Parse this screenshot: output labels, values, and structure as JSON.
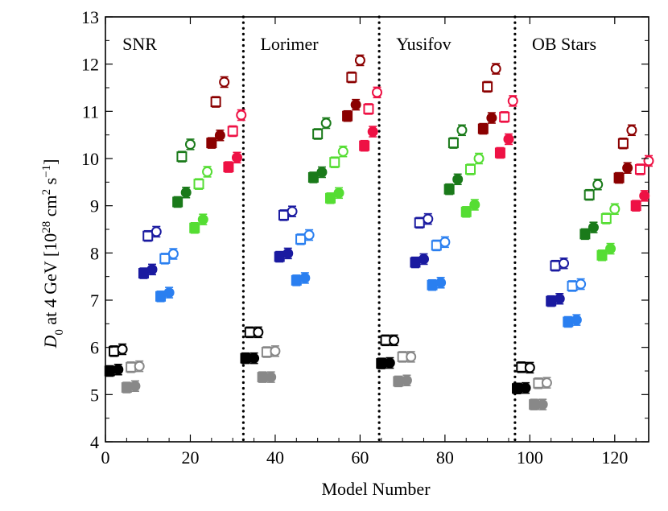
{
  "chart_data": {
    "type": "scatter",
    "xlabel": "Model Number",
    "ylabel": "D₀ at 4 GeV [10²⁸ cm² s⁻¹]",
    "ylabel_parts": {
      "symbol": "D",
      "subscript": "0",
      "middle": " at 4 GeV [10",
      "exp1": "28",
      "unit_cm": " cm",
      "exp2": "2",
      "unit_s": " s",
      "exp3": "−1",
      "close": "]"
    },
    "xlim": [
      0,
      128
    ],
    "ylim": [
      4,
      13
    ],
    "xticks": [
      0,
      20,
      40,
      60,
      80,
      100,
      120
    ],
    "yticks": [
      4,
      5,
      6,
      7,
      8,
      9,
      10,
      11,
      12,
      13
    ],
    "separators": [
      32.5,
      64.5,
      96.5
    ],
    "regions": [
      {
        "label": "SNR",
        "x": 4
      },
      {
        "label": "Lorimer",
        "x": 36.5
      },
      {
        "label": "Yusifov",
        "x": 68.5
      },
      {
        "label": "OB Stars",
        "x": 100.5
      }
    ],
    "group_colors": [
      "#000000",
      "#888888",
      "#1a1aa0",
      "#2a7ff0",
      "#1a7a1a",
      "#55dd33",
      "#8b0000",
      "#ee1144"
    ],
    "groups": [
      {
        "name": "SNR",
        "offset": 0,
        "values": [
          [
            5.5,
            5.92,
            5.53,
            5.96
          ],
          [
            5.15,
            5.58,
            5.18,
            5.6
          ],
          [
            7.57,
            8.36,
            7.65,
            8.45
          ],
          [
            7.08,
            7.88,
            7.16,
            7.98
          ],
          [
            9.08,
            10.04,
            9.28,
            10.3
          ],
          [
            8.53,
            9.46,
            8.71,
            9.72
          ],
          [
            10.33,
            11.2,
            10.49,
            11.62
          ],
          [
            9.82,
            10.58,
            10.02,
            10.92
          ]
        ]
      },
      {
        "name": "Lorimer",
        "offset": 32,
        "values": [
          [
            5.77,
            6.32,
            5.77,
            6.32
          ],
          [
            5.37,
            5.9,
            5.37,
            5.92
          ],
          [
            7.92,
            8.8,
            7.99,
            8.88
          ],
          [
            7.42,
            8.29,
            7.47,
            8.38
          ],
          [
            9.6,
            10.52,
            9.71,
            10.75
          ],
          [
            9.16,
            9.92,
            9.27,
            10.15
          ],
          [
            10.9,
            11.72,
            11.14,
            12.08
          ],
          [
            10.27,
            11.05,
            10.57,
            11.4
          ]
        ]
      },
      {
        "name": "Yusifov",
        "offset": 64,
        "values": [
          [
            5.66,
            6.15,
            5.67,
            6.15
          ],
          [
            5.28,
            5.8,
            5.3,
            5.8
          ],
          [
            7.8,
            8.64,
            7.87,
            8.72
          ],
          [
            7.32,
            8.16,
            7.37,
            8.23
          ],
          [
            9.35,
            10.33,
            9.56,
            10.6
          ],
          [
            8.87,
            9.77,
            9.02,
            10.0
          ],
          [
            10.63,
            11.52,
            10.86,
            11.9
          ],
          [
            10.12,
            10.88,
            10.41,
            11.22
          ]
        ]
      },
      {
        "name": "OB Stars",
        "offset": 96,
        "values": [
          [
            5.13,
            5.58,
            5.14,
            5.57
          ],
          [
            4.79,
            5.24,
            4.79,
            5.25
          ],
          [
            6.98,
            7.73,
            7.03,
            7.78
          ],
          [
            6.54,
            7.3,
            6.58,
            7.34
          ],
          [
            8.4,
            9.23,
            8.54,
            9.45
          ],
          [
            7.95,
            8.73,
            8.09,
            8.93
          ],
          [
            9.59,
            10.32,
            9.8,
            10.6
          ],
          [
            9.0,
            9.77,
            9.21,
            9.95
          ]
        ]
      }
    ]
  }
}
